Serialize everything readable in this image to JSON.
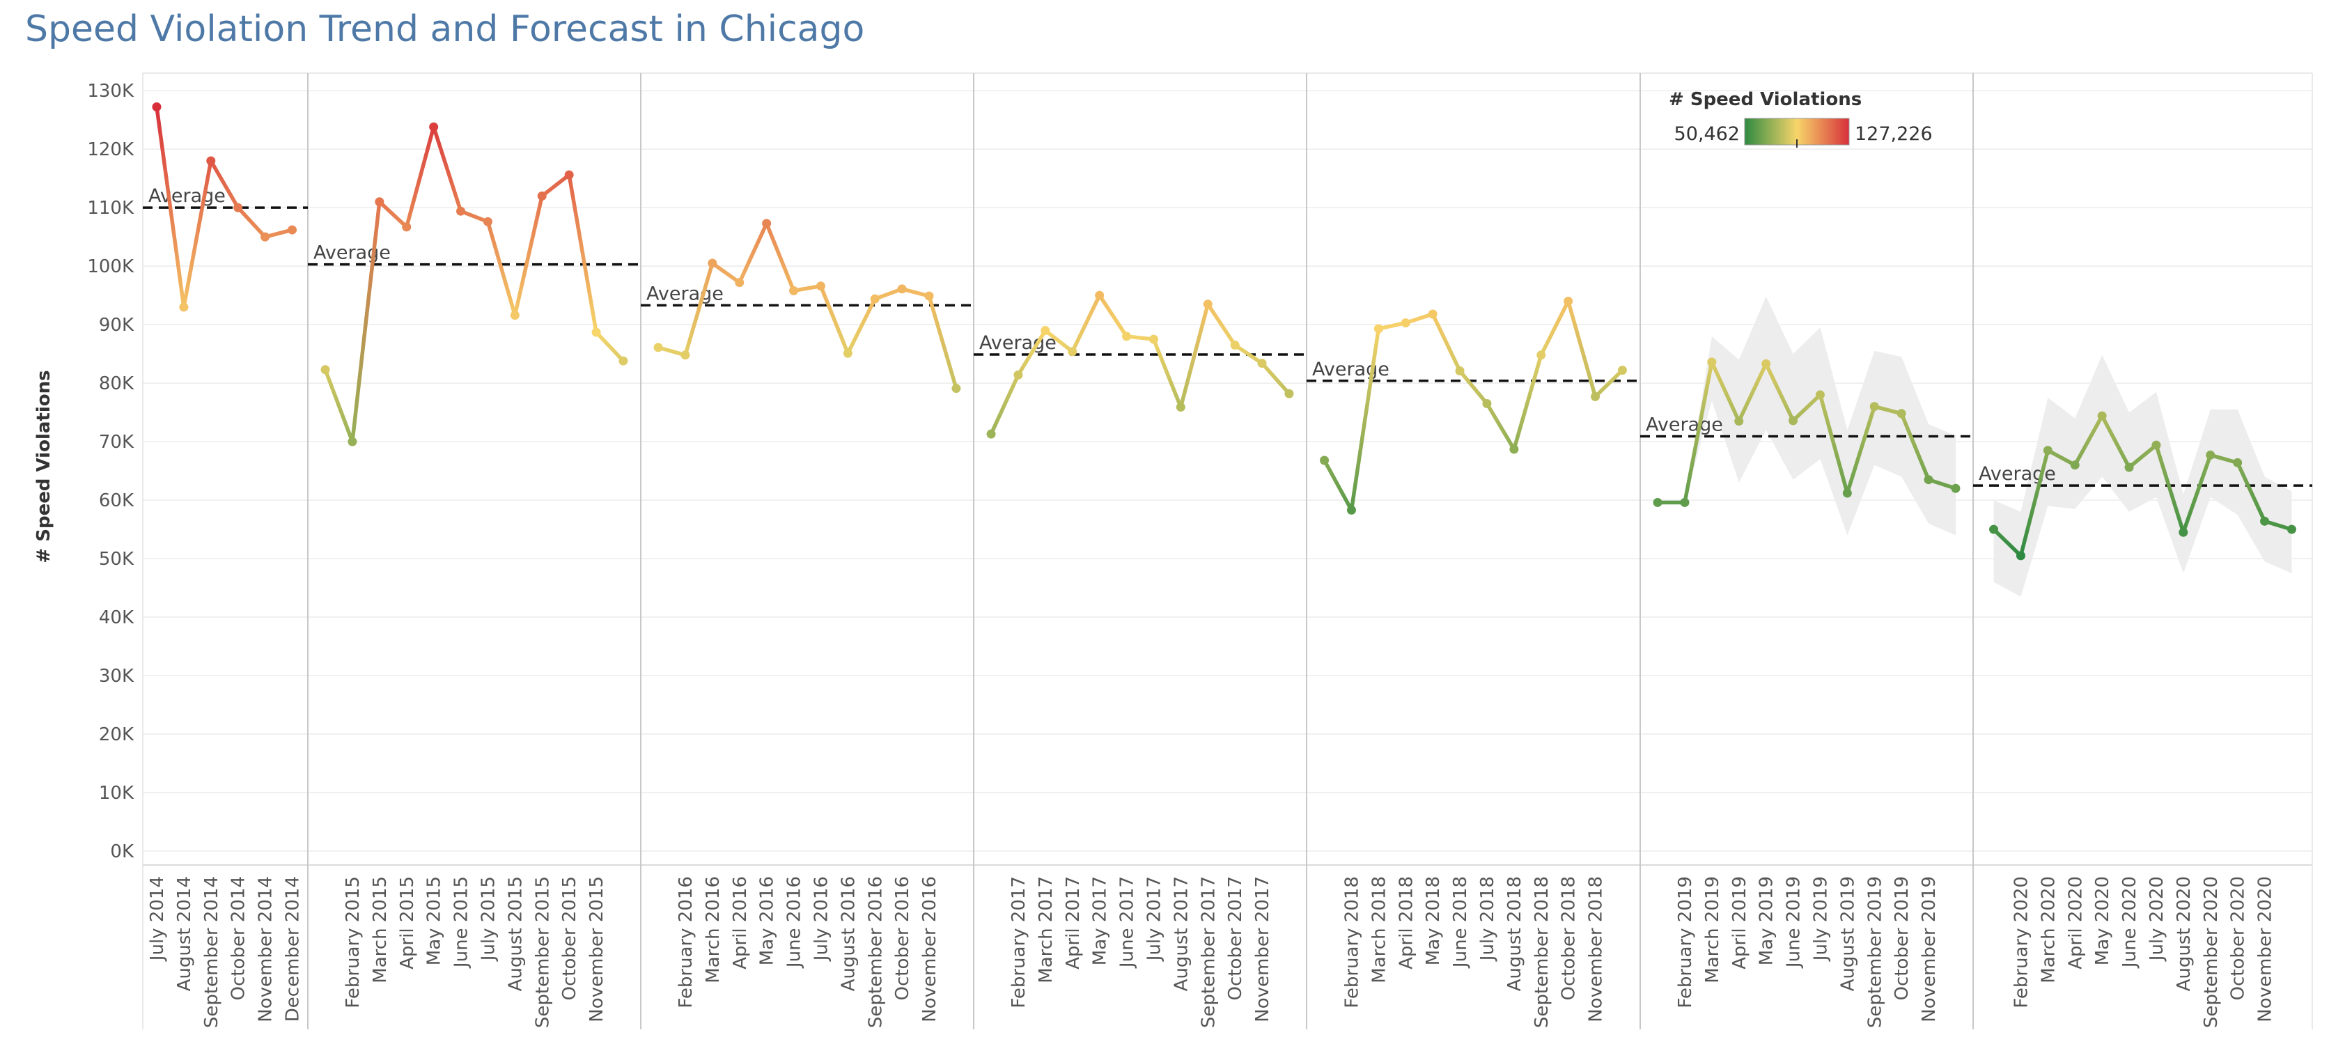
{
  "title": "Speed Violation Trend and Forecast in Chicago",
  "chart_data": {
    "type": "line",
    "title": "Speed Violation Trend and Forecast in Chicago",
    "ylabel": "# Speed Violations",
    "xlabel": "",
    "ylim": [
      0,
      133000
    ],
    "y_ticks": [
      "0K",
      "10K",
      "20K",
      "30K",
      "40K",
      "50K",
      "60K",
      "70K",
      "80K",
      "90K",
      "100K",
      "110K",
      "120K",
      "130K"
    ],
    "grid": true,
    "reference_line_label": "Average",
    "legend": {
      "title": "# Speed Violations",
      "min_label": "50,462",
      "max_label": "127,226",
      "min_value": 50462,
      "max_value": 127226,
      "placement": "top-right",
      "colors": [
        "#2f8a41",
        "#f7d56a",
        "#d7303a"
      ]
    },
    "panels": [
      {
        "year": 2014,
        "forecast": false,
        "average": 110000,
        "x_labels": [
          "July 2014",
          "August 2014",
          "September 2014",
          "October 2014",
          "November 2014",
          "December 2014"
        ],
        "points": [
          {
            "month": "2014-07",
            "value": 127226
          },
          {
            "month": "2014-08",
            "value": 93000
          },
          {
            "month": "2014-09",
            "value": 118000
          },
          {
            "month": "2014-10",
            "value": 110000
          },
          {
            "month": "2014-11",
            "value": 105000
          },
          {
            "month": "2014-12",
            "value": 106200
          }
        ]
      },
      {
        "year": 2015,
        "forecast": false,
        "average": 100300,
        "x_labels": [
          "February 2015",
          "March 2015",
          "April 2015",
          "May 2015",
          "June 2015",
          "July 2015",
          "August 2015",
          "September 2015",
          "October 2015",
          "November 2015"
        ],
        "points": [
          {
            "month": "2015-01",
            "value": 82300
          },
          {
            "month": "2015-02",
            "value": 70000
          },
          {
            "month": "2015-03",
            "value": 111000
          },
          {
            "month": "2015-04",
            "value": 106700
          },
          {
            "month": "2015-05",
            "value": 123800
          },
          {
            "month": "2015-06",
            "value": 109400
          },
          {
            "month": "2015-07",
            "value": 107600
          },
          {
            "month": "2015-08",
            "value": 91600
          },
          {
            "month": "2015-09",
            "value": 112000
          },
          {
            "month": "2015-10",
            "value": 115600
          },
          {
            "month": "2015-11",
            "value": 88700
          },
          {
            "month": "2015-12",
            "value": 83800
          }
        ]
      },
      {
        "year": 2016,
        "forecast": false,
        "average": 93300,
        "x_labels": [
          "February 2016",
          "March 2016",
          "April 2016",
          "May 2016",
          "June 2016",
          "July 2016",
          "August 2016",
          "September 2016",
          "October 2016",
          "November 2016"
        ],
        "points": [
          {
            "month": "2016-01",
            "value": 86100
          },
          {
            "month": "2016-02",
            "value": 84800
          },
          {
            "month": "2016-03",
            "value": 100500
          },
          {
            "month": "2016-04",
            "value": 97200
          },
          {
            "month": "2016-05",
            "value": 107300
          },
          {
            "month": "2016-06",
            "value": 95800
          },
          {
            "month": "2016-07",
            "value": 96600
          },
          {
            "month": "2016-08",
            "value": 85100
          },
          {
            "month": "2016-09",
            "value": 94400
          },
          {
            "month": "2016-10",
            "value": 96100
          },
          {
            "month": "2016-11",
            "value": 94900
          },
          {
            "month": "2016-12",
            "value": 79100
          }
        ]
      },
      {
        "year": 2017,
        "forecast": false,
        "average": 84900,
        "x_labels": [
          "February 2017",
          "March 2017",
          "April 2017",
          "May 2017",
          "June 2017",
          "July 2017",
          "August 2017",
          "September 2017",
          "October 2017",
          "November 2017"
        ],
        "points": [
          {
            "month": "2017-01",
            "value": 71300
          },
          {
            "month": "2017-02",
            "value": 81400
          },
          {
            "month": "2017-03",
            "value": 89000
          },
          {
            "month": "2017-04",
            "value": 85400
          },
          {
            "month": "2017-05",
            "value": 95000
          },
          {
            "month": "2017-06",
            "value": 88000
          },
          {
            "month": "2017-07",
            "value": 87500
          },
          {
            "month": "2017-08",
            "value": 75900
          },
          {
            "month": "2017-09",
            "value": 93500
          },
          {
            "month": "2017-10",
            "value": 86500
          },
          {
            "month": "2017-11",
            "value": 83400
          },
          {
            "month": "2017-12",
            "value": 78200
          }
        ]
      },
      {
        "year": 2018,
        "forecast": false,
        "average": 80400,
        "x_labels": [
          "February 2018",
          "March 2018",
          "April 2018",
          "May 2018",
          "June 2018",
          "July 2018",
          "August 2018",
          "September 2018",
          "October 2018",
          "November 2018"
        ],
        "points": [
          {
            "month": "2018-01",
            "value": 66800
          },
          {
            "month": "2018-02",
            "value": 58300
          },
          {
            "month": "2018-03",
            "value": 89300
          },
          {
            "month": "2018-04",
            "value": 90300
          },
          {
            "month": "2018-05",
            "value": 91800
          },
          {
            "month": "2018-06",
            "value": 82100
          },
          {
            "month": "2018-07",
            "value": 76500
          },
          {
            "month": "2018-08",
            "value": 68700
          },
          {
            "month": "2018-09",
            "value": 84800
          },
          {
            "month": "2018-10",
            "value": 94000
          },
          {
            "month": "2018-11",
            "value": 77700
          },
          {
            "month": "2018-12",
            "value": 82200
          }
        ]
      },
      {
        "year": 2019,
        "forecast": true,
        "average": 70900,
        "x_labels": [
          "February 2019",
          "March 2019",
          "April 2019",
          "May 2019",
          "June 2019",
          "July 2019",
          "August 2019",
          "September 2019",
          "October 2019",
          "November 2019"
        ],
        "points": [
          {
            "month": "2019-01",
            "value": 59600,
            "lo": 59600,
            "hi": 59600
          },
          {
            "month": "2019-02",
            "value": 59600,
            "lo": 59600,
            "hi": 59600
          },
          {
            "month": "2019-03",
            "value": 83600,
            "lo": 77000,
            "hi": 88000
          },
          {
            "month": "2019-04",
            "value": 73500,
            "lo": 63000,
            "hi": 84000
          },
          {
            "month": "2019-05",
            "value": 83300,
            "lo": 72000,
            "hi": 94800
          },
          {
            "month": "2019-06",
            "value": 73600,
            "lo": 63500,
            "hi": 85000
          },
          {
            "month": "2019-07",
            "value": 78000,
            "lo": 67000,
            "hi": 89500
          },
          {
            "month": "2019-08",
            "value": 61200,
            "lo": 54000,
            "hi": 72000
          },
          {
            "month": "2019-09",
            "value": 76000,
            "lo": 66000,
            "hi": 85500
          },
          {
            "month": "2019-10",
            "value": 74800,
            "lo": 64000,
            "hi": 84500
          },
          {
            "month": "2019-11",
            "value": 63500,
            "lo": 56000,
            "hi": 73000
          },
          {
            "month": "2019-12",
            "value": 62000,
            "lo": 54000,
            "hi": 71000
          }
        ]
      },
      {
        "year": 2020,
        "forecast": true,
        "average": 62500,
        "x_labels": [
          "February 2020",
          "March 2020",
          "April 2020",
          "May 2020",
          "June 2020",
          "July 2020",
          "August 2020",
          "September 2020",
          "October 2020",
          "November 2020"
        ],
        "points": [
          {
            "month": "2020-01",
            "value": 55000,
            "lo": 46000,
            "hi": 60000
          },
          {
            "month": "2020-02",
            "value": 50500,
            "lo": 43500,
            "hi": 58000
          },
          {
            "month": "2020-03",
            "value": 68500,
            "lo": 59000,
            "hi": 77500
          },
          {
            "month": "2020-04",
            "value": 66000,
            "lo": 58500,
            "hi": 74000
          },
          {
            "month": "2020-05",
            "value": 74400,
            "lo": 64000,
            "hi": 84800
          },
          {
            "month": "2020-06",
            "value": 65600,
            "lo": 58000,
            "hi": 75000
          },
          {
            "month": "2020-07",
            "value": 69400,
            "lo": 60500,
            "hi": 78500
          },
          {
            "month": "2020-08",
            "value": 54500,
            "lo": 47500,
            "hi": 61000
          },
          {
            "month": "2020-09",
            "value": 67700,
            "lo": 60500,
            "hi": 75500
          },
          {
            "month": "2020-10",
            "value": 66400,
            "lo": 57500,
            "hi": 75500
          },
          {
            "month": "2020-11",
            "value": 56400,
            "lo": 49500,
            "hi": 64000
          },
          {
            "month": "2020-12",
            "value": 55000,
            "lo": 47500,
            "hi": 61500
          }
        ]
      }
    ]
  }
}
